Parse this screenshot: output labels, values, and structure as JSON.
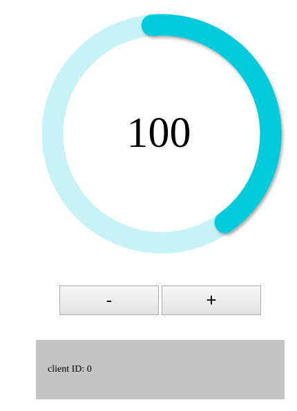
{
  "gauge": {
    "value": "100",
    "min": 0,
    "max": 200,
    "track_color": "#c8f3f6",
    "fill_color": "#00cbdb"
  },
  "controls": {
    "decrement_label": "-",
    "increment_label": "+"
  },
  "client": {
    "label": "client ID: 0"
  }
}
